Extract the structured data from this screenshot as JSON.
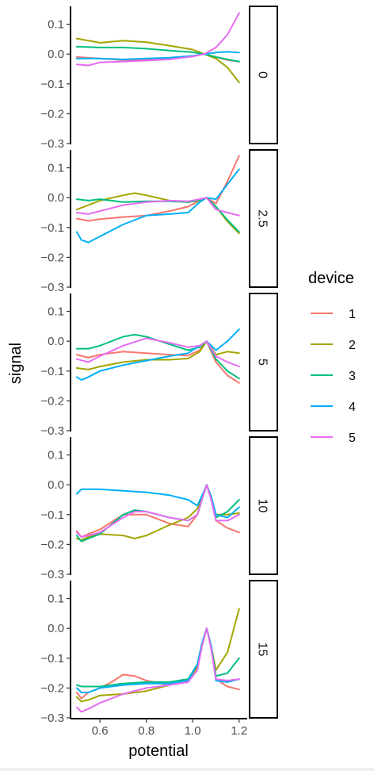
{
  "chart_data": {
    "type": "line",
    "facet_by": "strip",
    "xlabel": "potential",
    "ylabel": "signal",
    "xlim": [
      0.48,
      1.235
    ],
    "ylim": [
      -0.3,
      0.16
    ],
    "x_ticks": [
      0.6,
      0.8,
      1.0,
      1.2
    ],
    "x_tick_labels": [
      "0.6",
      "0.8",
      "1.0",
      "1.2"
    ],
    "y_ticks": [
      0.1,
      0.0,
      -0.1,
      -0.2,
      -0.3
    ],
    "y_tick_labels": [
      "0.1",
      "0.0",
      "−0.1",
      "−0.2",
      "−0.3"
    ],
    "legend": {
      "title": "device",
      "placement": "right",
      "entries": [
        {
          "label": "1",
          "color": "#F8766D"
        },
        {
          "label": "2",
          "color": "#A3A500"
        },
        {
          "label": "3",
          "color": "#00BF7D"
        },
        {
          "label": "4",
          "color": "#00B0F6"
        },
        {
          "label": "5",
          "color": "#E76BF3"
        }
      ]
    },
    "panels": [
      {
        "strip": "0",
        "series": [
          {
            "device": "1",
            "x": [
              0.5,
              0.6,
              0.7,
              0.8,
              0.9,
              1.0,
              1.05,
              1.1,
              1.15,
              1.2
            ],
            "y": [
              -0.01,
              -0.015,
              -0.02,
              -0.018,
              -0.015,
              -0.008,
              0.0,
              -0.01,
              -0.02,
              -0.025
            ]
          },
          {
            "device": "2",
            "x": [
              0.5,
              0.6,
              0.7,
              0.8,
              0.9,
              1.0,
              1.05,
              1.1,
              1.15,
              1.2
            ],
            "y": [
              0.052,
              0.038,
              0.045,
              0.04,
              0.028,
              0.015,
              0.0,
              -0.015,
              -0.045,
              -0.095
            ]
          },
          {
            "device": "3",
            "x": [
              0.5,
              0.6,
              0.7,
              0.8,
              0.9,
              1.0,
              1.05,
              1.1,
              1.15,
              1.2
            ],
            "y": [
              0.025,
              0.022,
              0.022,
              0.018,
              0.012,
              0.006,
              0.0,
              -0.01,
              -0.018,
              -0.025
            ]
          },
          {
            "device": "4",
            "x": [
              0.5,
              0.6,
              0.7,
              0.8,
              0.9,
              1.0,
              1.05,
              1.1,
              1.15,
              1.2
            ],
            "y": [
              -0.015,
              -0.015,
              -0.018,
              -0.015,
              -0.012,
              -0.006,
              0.0,
              0.005,
              0.008,
              0.005
            ]
          },
          {
            "device": "5",
            "x": [
              0.5,
              0.55,
              0.6,
              0.7,
              0.8,
              0.9,
              1.0,
              1.05,
              1.1,
              1.15,
              1.2
            ],
            "y": [
              -0.035,
              -0.038,
              -0.028,
              -0.025,
              -0.022,
              -0.018,
              -0.008,
              0.0,
              0.022,
              0.065,
              0.138
            ]
          }
        ]
      },
      {
        "strip": "2.5",
        "series": [
          {
            "device": "1",
            "x": [
              0.5,
              0.55,
              0.6,
              0.7,
              0.8,
              0.9,
              0.98,
              1.03,
              1.06,
              1.1,
              1.15,
              1.2
            ],
            "y": [
              -0.07,
              -0.078,
              -0.072,
              -0.065,
              -0.06,
              -0.045,
              -0.03,
              -0.01,
              0.0,
              -0.02,
              0.055,
              0.14
            ]
          },
          {
            "device": "2",
            "x": [
              0.5,
              0.55,
              0.6,
              0.7,
              0.75,
              0.8,
              0.9,
              0.98,
              1.03,
              1.06,
              1.1,
              1.15,
              1.2
            ],
            "y": [
              -0.04,
              -0.025,
              -0.01,
              0.008,
              0.015,
              0.008,
              -0.01,
              -0.015,
              -0.01,
              0.0,
              -0.03,
              -0.08,
              -0.12
            ]
          },
          {
            "device": "3",
            "x": [
              0.5,
              0.55,
              0.6,
              0.7,
              0.8,
              0.9,
              0.98,
              1.03,
              1.06,
              1.1,
              1.15,
              1.2
            ],
            "y": [
              -0.005,
              -0.01,
              -0.005,
              -0.015,
              -0.012,
              -0.012,
              -0.015,
              -0.008,
              0.0,
              -0.03,
              -0.075,
              -0.115
            ]
          },
          {
            "device": "4",
            "x": [
              0.5,
              0.52,
              0.55,
              0.6,
              0.7,
              0.8,
              0.9,
              0.98,
              1.03,
              1.06,
              1.1,
              1.15,
              1.2
            ],
            "y": [
              -0.115,
              -0.142,
              -0.15,
              -0.13,
              -0.09,
              -0.06,
              -0.055,
              -0.05,
              -0.015,
              0.0,
              -0.005,
              0.045,
              0.095
            ]
          },
          {
            "device": "5",
            "x": [
              0.5,
              0.55,
              0.6,
              0.7,
              0.8,
              0.9,
              0.98,
              1.03,
              1.06,
              1.1,
              1.15,
              1.2
            ],
            "y": [
              -0.05,
              -0.055,
              -0.045,
              -0.025,
              -0.015,
              -0.01,
              -0.012,
              -0.005,
              0.0,
              -0.04,
              -0.05,
              -0.06
            ]
          }
        ]
      },
      {
        "strip": "5",
        "series": [
          {
            "device": "1",
            "x": [
              0.5,
              0.55,
              0.6,
              0.7,
              0.8,
              0.9,
              0.98,
              1.03,
              1.06,
              1.1,
              1.15,
              1.2
            ],
            "y": [
              -0.045,
              -0.055,
              -0.045,
              -0.035,
              -0.04,
              -0.045,
              -0.048,
              -0.03,
              0.0,
              -0.07,
              -0.115,
              -0.14
            ]
          },
          {
            "device": "2",
            "x": [
              0.5,
              0.55,
              0.6,
              0.7,
              0.8,
              0.9,
              0.98,
              1.03,
              1.06,
              1.1,
              1.15,
              1.2
            ],
            "y": [
              -0.09,
              -0.095,
              -0.085,
              -0.07,
              -0.062,
              -0.062,
              -0.058,
              -0.035,
              0.0,
              -0.045,
              -0.035,
              -0.04
            ]
          },
          {
            "device": "3",
            "x": [
              0.5,
              0.55,
              0.6,
              0.7,
              0.75,
              0.8,
              0.9,
              0.98,
              1.03,
              1.06,
              1.1,
              1.15,
              1.2
            ],
            "y": [
              -0.025,
              -0.025,
              -0.015,
              0.015,
              0.022,
              0.015,
              -0.01,
              -0.03,
              -0.02,
              0.0,
              -0.06,
              -0.1,
              -0.125
            ]
          },
          {
            "device": "4",
            "x": [
              0.5,
              0.52,
              0.55,
              0.6,
              0.7,
              0.8,
              0.9,
              0.98,
              1.03,
              1.06,
              1.1,
              1.15,
              1.2
            ],
            "y": [
              -0.12,
              -0.13,
              -0.12,
              -0.1,
              -0.08,
              -0.065,
              -0.05,
              -0.04,
              -0.015,
              0.0,
              -0.03,
              0.0,
              0.04
            ]
          },
          {
            "device": "5",
            "x": [
              0.5,
              0.55,
              0.6,
              0.7,
              0.8,
              0.9,
              0.98,
              1.03,
              1.06,
              1.1,
              1.15,
              1.2
            ],
            "y": [
              -0.06,
              -0.07,
              -0.05,
              -0.015,
              0.01,
              -0.005,
              -0.02,
              -0.015,
              0.0,
              -0.05,
              -0.07,
              -0.085
            ]
          }
        ]
      },
      {
        "strip": "10",
        "series": [
          {
            "device": "1",
            "x": [
              0.5,
              0.52,
              0.55,
              0.6,
              0.7,
              0.8,
              0.9,
              0.98,
              1.02,
              1.05,
              1.06,
              1.08,
              1.1,
              1.15,
              1.2
            ],
            "y": [
              -0.155,
              -0.175,
              -0.165,
              -0.15,
              -0.1,
              -0.1,
              -0.13,
              -0.14,
              -0.1,
              -0.025,
              0.0,
              -0.05,
              -0.12,
              -0.145,
              -0.16
            ]
          },
          {
            "device": "2",
            "x": [
              0.5,
              0.52,
              0.55,
              0.6,
              0.7,
              0.75,
              0.8,
              0.9,
              0.98,
              1.02,
              1.05,
              1.06,
              1.08,
              1.1,
              1.15,
              1.2
            ],
            "y": [
              -0.18,
              -0.185,
              -0.175,
              -0.165,
              -0.17,
              -0.18,
              -0.17,
              -0.135,
              -0.11,
              -0.08,
              -0.02,
              0.0,
              -0.04,
              -0.1,
              -0.1,
              -0.095
            ]
          },
          {
            "device": "3",
            "x": [
              0.5,
              0.52,
              0.55,
              0.6,
              0.7,
              0.75,
              0.8,
              0.9,
              0.98,
              1.02,
              1.05,
              1.06,
              1.08,
              1.1,
              1.15,
              1.2
            ],
            "y": [
              -0.17,
              -0.19,
              -0.18,
              -0.165,
              -0.1,
              -0.085,
              -0.09,
              -0.11,
              -0.12,
              -0.1,
              -0.025,
              0.0,
              -0.04,
              -0.11,
              -0.09,
              -0.05
            ]
          },
          {
            "device": "4",
            "x": [
              0.5,
              0.52,
              0.55,
              0.6,
              0.7,
              0.8,
              0.9,
              0.98,
              1.02,
              1.05,
              1.06,
              1.08,
              1.1,
              1.15,
              1.2
            ],
            "y": [
              -0.03,
              -0.015,
              -0.015,
              -0.015,
              -0.02,
              -0.025,
              -0.035,
              -0.05,
              -0.07,
              -0.02,
              0.0,
              -0.04,
              -0.1,
              -0.11,
              -0.075
            ]
          },
          {
            "device": "5",
            "x": [
              0.5,
              0.52,
              0.55,
              0.6,
              0.7,
              0.75,
              0.8,
              0.9,
              0.98,
              1.02,
              1.05,
              1.06,
              1.08,
              1.1,
              1.15,
              1.2
            ],
            "y": [
              -0.16,
              -0.175,
              -0.17,
              -0.16,
              -0.11,
              -0.09,
              -0.09,
              -0.11,
              -0.12,
              -0.1,
              -0.025,
              0.0,
              -0.05,
              -0.12,
              -0.12,
              -0.1
            ]
          }
        ]
      },
      {
        "strip": "15",
        "series": [
          {
            "device": "1",
            "x": [
              0.5,
              0.52,
              0.55,
              0.6,
              0.65,
              0.7,
              0.75,
              0.8,
              0.9,
              0.98,
              1.02,
              1.04,
              1.06,
              1.08,
              1.1,
              1.15,
              1.2
            ],
            "y": [
              -0.215,
              -0.235,
              -0.215,
              -0.2,
              -0.18,
              -0.155,
              -0.16,
              -0.175,
              -0.19,
              -0.18,
              -0.13,
              -0.06,
              0.0,
              -0.06,
              -0.17,
              -0.195,
              -0.205
            ]
          },
          {
            "device": "2",
            "x": [
              0.5,
              0.52,
              0.55,
              0.6,
              0.7,
              0.8,
              0.9,
              0.98,
              1.02,
              1.04,
              1.06,
              1.08,
              1.1,
              1.15,
              1.2
            ],
            "y": [
              -0.23,
              -0.245,
              -0.24,
              -0.225,
              -0.22,
              -0.21,
              -0.19,
              -0.17,
              -0.13,
              -0.06,
              0.0,
              -0.06,
              -0.14,
              -0.08,
              0.065
            ]
          },
          {
            "device": "3",
            "x": [
              0.5,
              0.52,
              0.55,
              0.6,
              0.7,
              0.8,
              0.9,
              0.98,
              1.02,
              1.04,
              1.06,
              1.08,
              1.1,
              1.15,
              1.2
            ],
            "y": [
              -0.19,
              -0.195,
              -0.195,
              -0.195,
              -0.185,
              -0.18,
              -0.18,
              -0.17,
              -0.12,
              -0.05,
              0.0,
              -0.06,
              -0.16,
              -0.15,
              -0.1
            ]
          },
          {
            "device": "4",
            "x": [
              0.5,
              0.52,
              0.55,
              0.6,
              0.7,
              0.8,
              0.9,
              0.98,
              1.02,
              1.04,
              1.06,
              1.08,
              1.1,
              1.15,
              1.2
            ],
            "y": [
              -0.2,
              -0.215,
              -0.215,
              -0.2,
              -0.19,
              -0.185,
              -0.185,
              -0.175,
              -0.12,
              -0.05,
              0.0,
              -0.06,
              -0.175,
              -0.18,
              -0.17
            ]
          },
          {
            "device": "5",
            "x": [
              0.5,
              0.52,
              0.55,
              0.6,
              0.7,
              0.8,
              0.9,
              0.98,
              1.02,
              1.04,
              1.06,
              1.08,
              1.1,
              1.15,
              1.2
            ],
            "y": [
              -0.265,
              -0.28,
              -0.27,
              -0.25,
              -0.22,
              -0.2,
              -0.19,
              -0.18,
              -0.14,
              -0.06,
              0.0,
              -0.07,
              -0.17,
              -0.175,
              -0.17
            ]
          }
        ]
      }
    ]
  }
}
